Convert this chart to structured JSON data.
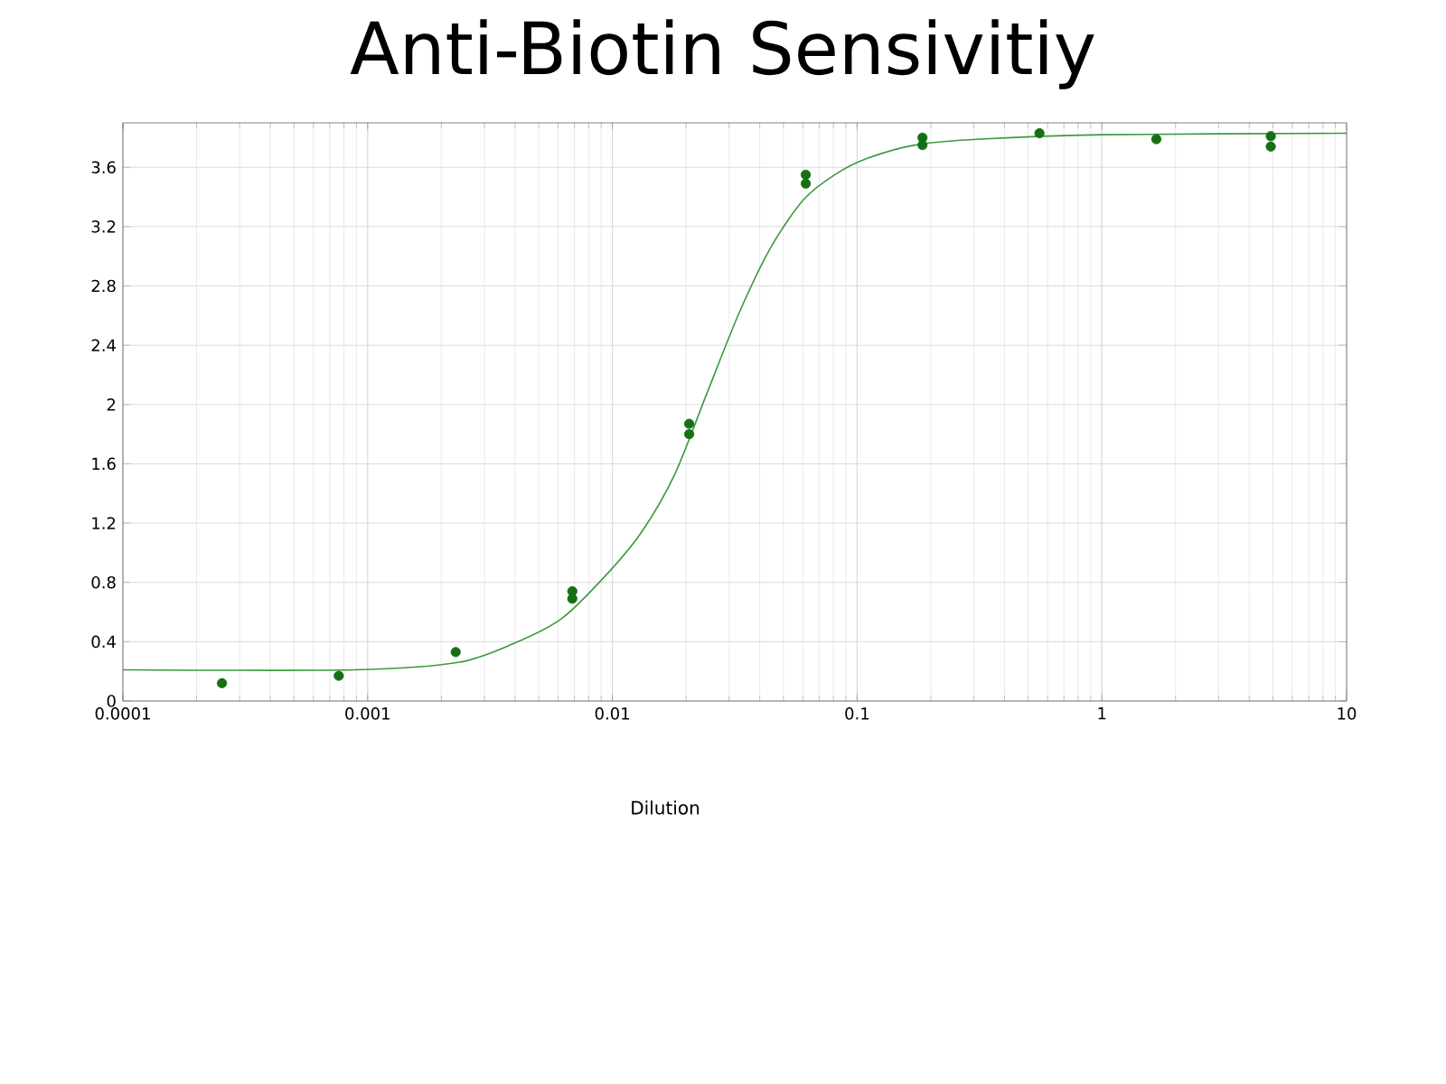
{
  "chart_data": {
    "type": "scatter",
    "title": "Anti-Biotin Sensivitiy",
    "xlabel": "Dilution",
    "log": "x",
    "grid": true,
    "xlim": [
      0.0001,
      10
    ],
    "xticks": [
      0.0001,
      0.001,
      0.01,
      0.1,
      1,
      10
    ],
    "ylim": [
      0,
      3.9
    ],
    "yticks": [
      0,
      0.4,
      0.8,
      1.2,
      1.6,
      2,
      2.4,
      2.8,
      3.2,
      3.6
    ],
    "series": [
      {
        "marker": "circle",
        "color": "#157015",
        "x": [
          0.000254,
          0.000762,
          0.00229,
          0.00686,
          0.00686,
          0.0206,
          0.0206,
          0.0617,
          0.0617,
          0.185,
          0.185,
          0.556,
          1.67,
          4.9,
          4.9
        ],
        "values": [
          0.12,
          0.17,
          0.33,
          0.74,
          0.69,
          1.87,
          1.8,
          3.55,
          3.49,
          3.8,
          3.75,
          3.83,
          3.79,
          3.81,
          3.74
        ]
      },
      {
        "type": "line",
        "marker": "none",
        "color": "#3c9a3c",
        "x": [
          0.0001,
          0.00088,
          0.00234,
          0.00398,
          0.00625,
          0.0098,
          0.0133,
          0.018,
          0.0244,
          0.033,
          0.0444,
          0.0603,
          0.0811,
          0.11,
          0.172,
          0.317,
          1,
          10
        ],
        "values": [
          0.21,
          0.21,
          0.26,
          0.39,
          0.56,
          0.88,
          1.15,
          1.53,
          2.08,
          2.62,
          3.06,
          3.38,
          3.55,
          3.66,
          3.75,
          3.79,
          3.82,
          3.83
        ]
      }
    ]
  }
}
